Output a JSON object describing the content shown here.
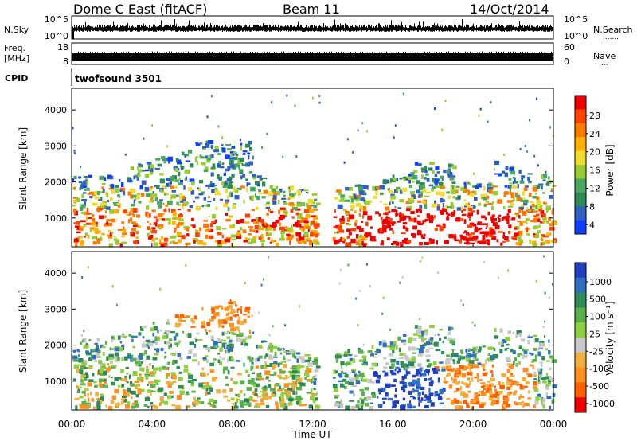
{
  "header": {
    "station": "Dome C East (fitACF)",
    "beam": "Beam 11",
    "date": "14/Oct/2014"
  },
  "nsky_panel": {
    "left_label": "N.Sky",
    "left_ticks": [
      "10^5",
      "10^0"
    ],
    "right_ticks": [
      "10^5",
      "10^0"
    ],
    "right_label": "N.Search",
    "right_label_dots": "......."
  },
  "freq_panel": {
    "left_label_top": "Freq.",
    "left_label_bottom": "[MHz]",
    "left_ticks": [
      "18",
      "8"
    ],
    "right_ticks": [
      "60",
      "0"
    ],
    "right_label": "Nave",
    "right_label_dots": "...."
  },
  "cpid": {
    "label": "CPID",
    "value": "twofsound 3501"
  },
  "chart_data": [
    {
      "type": "heatmap",
      "name": "power",
      "ylabel": "Slant Range [km]",
      "ylim": [
        200,
        4600
      ],
      "yticks": [
        1000,
        2000,
        3000,
        4000
      ],
      "x_hours_range": [
        0,
        24
      ],
      "colorbar": {
        "label": "Power [dB]",
        "ticks": [
          "28",
          "24",
          "20",
          "16",
          "12",
          "8",
          "4"
        ],
        "colors": [
          "#ee0000",
          "#ff4400",
          "#ff7a00",
          "#ffb000",
          "#f0dc30",
          "#9acd32",
          "#4aa860",
          "#2e8b57",
          "#3060c0",
          "#1040ff"
        ]
      }
    },
    {
      "type": "heatmap",
      "name": "velocity",
      "ylabel": "Slant Range [km]",
      "ylim": [
        200,
        4600
      ],
      "yticks": [
        1000,
        2000,
        3000,
        4000
      ],
      "x_hours_range": [
        0,
        24
      ],
      "colorbar": {
        "label": "Velocity [m s⁻¹]",
        "ticks": [
          "1000",
          "500",
          "100",
          "25",
          "-25",
          "-100",
          "-500",
          "-1000"
        ],
        "colors": [
          "#2040c0",
          "#3070c0",
          "#2e8b57",
          "#5ab04a",
          "#8fd040",
          "#c8c8c8",
          "#f0b040",
          "#ff9020",
          "#ff6000",
          "#ee0000"
        ]
      }
    }
  ],
  "x_axis": {
    "label": "Time UT",
    "ticks": [
      "00:00",
      "04:00",
      "08:00",
      "12:00",
      "16:00",
      "20:00",
      "00:00"
    ]
  }
}
